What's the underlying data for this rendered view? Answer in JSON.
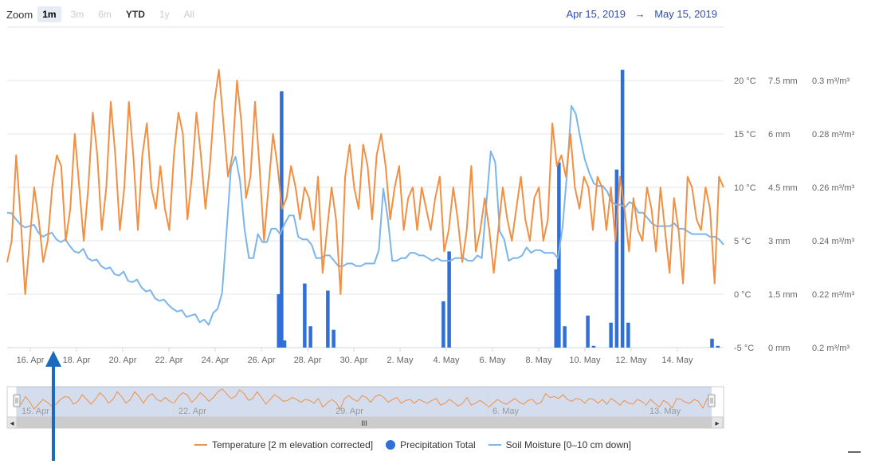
{
  "zoom": {
    "label": "Zoom",
    "buttons": [
      {
        "label": "1m",
        "state": "active"
      },
      {
        "label": "3m",
        "state": "disabled"
      },
      {
        "label": "6m",
        "state": "disabled"
      },
      {
        "label": "YTD",
        "state": "enabled"
      },
      {
        "label": "1y",
        "state": "disabled"
      },
      {
        "label": "All",
        "state": "disabled"
      }
    ]
  },
  "range": {
    "from": "Apr 15, 2019",
    "arrow": "→",
    "to": "May 15, 2019"
  },
  "colors": {
    "temperature": "#f28f43",
    "precipitation": "#2f6fd6",
    "soil": "#7cb5ec",
    "annotation_arrow": "#1a6bbd"
  },
  "chart_data": {
    "type": "line",
    "x_start": "2019-04-15",
    "x_end": "2019-05-16",
    "x_tick_labels": [
      "16. Apr",
      "18. Apr",
      "20. Apr",
      "22. Apr",
      "24. Apr",
      "26. Apr",
      "28. Apr",
      "30. Apr",
      "2. May",
      "4. May",
      "6. May",
      "8. May",
      "10. May",
      "12. May",
      "14. May"
    ],
    "navigator_tick_labels": [
      "15. Apr",
      "22. Apr",
      "29. Apr",
      "6. May",
      "13. May"
    ],
    "axes": [
      {
        "name": "temperature",
        "ticks": [
          "-5 °C",
          "0 °C",
          "5 °C",
          "10 °C",
          "15 °C",
          "20 °C"
        ],
        "ylim": [
          -5,
          20
        ]
      },
      {
        "name": "precipitation",
        "ticks": [
          "0 mm",
          "1.5 mm",
          "3 mm",
          "4.5 mm",
          "6 mm",
          "7.5 mm"
        ],
        "ylim": [
          0,
          7.5
        ]
      },
      {
        "name": "soil",
        "ticks": [
          "0.2 m³/m³",
          "0.22 m³/m³",
          "0.24 m³/m³",
          "0.26 m³/m³",
          "0.28 m³/m³",
          "0.3 m³/m³"
        ],
        "ylim": [
          0.2,
          0.3
        ]
      }
    ],
    "series": [
      {
        "name": "Temperature [2 m elevation corrected]",
        "kind": "line",
        "axis": 0,
        "values": [
          3,
          5,
          13,
          7,
          0,
          5,
          10,
          7,
          3,
          5,
          10,
          13,
          12,
          5,
          8,
          15,
          10,
          5,
          10,
          17,
          13,
          6,
          10,
          18,
          13,
          6,
          10,
          18,
          13,
          6,
          13,
          16,
          10,
          8,
          12,
          8,
          6,
          13,
          17,
          15,
          7,
          11,
          17,
          13,
          8,
          12,
          18,
          21,
          16,
          11,
          13,
          20,
          16,
          9,
          11,
          18,
          12,
          5,
          10,
          15,
          12,
          8,
          9,
          12,
          10,
          7,
          10,
          9,
          6,
          11,
          2,
          6,
          10,
          7,
          0,
          11,
          14,
          10,
          8,
          14,
          12,
          7,
          13,
          15,
          12,
          7,
          10,
          12,
          6,
          9,
          10,
          6,
          10,
          8,
          6,
          9,
          11,
          4,
          6,
          10,
          7,
          3,
          6,
          12,
          4,
          6,
          9,
          6,
          2,
          6,
          10,
          7,
          5,
          8,
          11,
          7,
          5,
          9,
          10,
          5,
          7,
          16,
          12,
          13,
          11,
          15,
          10,
          8,
          11,
          10,
          6,
          11,
          10,
          6,
          10,
          5,
          11,
          8,
          4,
          9,
          6,
          5,
          10,
          8,
          4,
          10,
          6,
          2,
          9,
          6,
          1,
          11,
          10,
          7,
          6,
          10,
          8,
          1,
          11,
          10
        ]
      },
      {
        "name": "Precipitation Total",
        "kind": "bar",
        "axis": 1,
        "points": [
          [
            "2019-04-26T18:00",
            1.5
          ],
          [
            "2019-04-26T21:00",
            7.2
          ],
          [
            "2019-04-27T00:00",
            0.2
          ],
          [
            "2019-04-27T21:00",
            1.8
          ],
          [
            "2019-04-28T03:00",
            0.6
          ],
          [
            "2019-04-28T21:00",
            1.6
          ],
          [
            "2019-04-29T03:00",
            0.5
          ],
          [
            "2019-05-03T21:00",
            1.3
          ],
          [
            "2019-05-04T03:00",
            2.7
          ],
          [
            "2019-05-08T18:00",
            2.2
          ],
          [
            "2019-05-08T21:00",
            5.2
          ],
          [
            "2019-05-09T03:00",
            0.6
          ],
          [
            "2019-05-10T03:00",
            0.9
          ],
          [
            "2019-05-10T09:00",
            0.05
          ],
          [
            "2019-05-11T03:00",
            0.7
          ],
          [
            "2019-05-11T09:00",
            5.0
          ],
          [
            "2019-05-11T15:00",
            7.8
          ],
          [
            "2019-05-11T21:00",
            0.7
          ],
          [
            "2019-05-15T12:00",
            0.25
          ],
          [
            "2019-05-15T18:00",
            0.05
          ]
        ]
      },
      {
        "name": "Soil Moisture [0-10 cm down]",
        "kind": "line",
        "axis": 2,
        "values": [
          0.2505,
          0.2503,
          0.248,
          0.246,
          0.245,
          0.2455,
          0.246,
          0.243,
          0.2415,
          0.2425,
          0.243,
          0.2405,
          0.2395,
          0.2405,
          0.238,
          0.236,
          0.2355,
          0.237,
          0.2335,
          0.2325,
          0.233,
          0.2305,
          0.2295,
          0.23,
          0.2275,
          0.227,
          0.2285,
          0.225,
          0.2245,
          0.2255,
          0.2225,
          0.221,
          0.2215,
          0.2185,
          0.2175,
          0.218,
          0.216,
          0.2145,
          0.2135,
          0.214,
          0.2115,
          0.212,
          0.2125,
          0.2095,
          0.2105,
          0.2085,
          0.213,
          0.2145,
          0.2205,
          0.2435,
          0.2675,
          0.2715,
          0.2625,
          0.2445,
          0.2335,
          0.2335,
          0.2425,
          0.2395,
          0.2395,
          0.2445,
          0.2445,
          0.2425,
          0.2465,
          0.2495,
          0.2495,
          0.2415,
          0.2405,
          0.2405,
          0.2385,
          0.2335,
          0.2335,
          0.2345,
          0.2345,
          0.2325,
          0.2305,
          0.2305,
          0.2315,
          0.2315,
          0.2305,
          0.2305,
          0.2315,
          0.2315,
          0.2315,
          0.2365,
          0.2595,
          0.2485,
          0.2325,
          0.2325,
          0.2335,
          0.2335,
          0.2355,
          0.2355,
          0.2345,
          0.2345,
          0.2335,
          0.2325,
          0.2335,
          0.2325,
          0.2325,
          0.2325,
          0.2335,
          0.2335,
          0.2335,
          0.2325,
          0.2325,
          0.2345,
          0.2335,
          0.2535,
          0.2735,
          0.2695,
          0.2435,
          0.2405,
          0.2325,
          0.2335,
          0.2335,
          0.2345,
          0.2375,
          0.2355,
          0.2365,
          0.2365,
          0.2355,
          0.2355,
          0.2355,
          0.2335,
          0.2445,
          0.2645,
          0.2905,
          0.2875,
          0.2785,
          0.2705,
          0.2655,
          0.2615,
          0.2605,
          0.2605,
          0.2585,
          0.2545,
          0.2535,
          0.2535,
          0.2525,
          0.2545,
          0.2535,
          0.2505,
          0.2505,
          0.2485,
          0.2465,
          0.2455,
          0.2455,
          0.2455,
          0.2455,
          0.2465,
          0.2445,
          0.2445,
          0.2435,
          0.2425,
          0.2425,
          0.2425,
          0.2425,
          0.2415,
          0.2415,
          0.2405,
          0.2385
        ]
      }
    ]
  },
  "legend": [
    {
      "label": "Temperature [2 m elevation corrected]",
      "symbol": "line",
      "color": "#f28f43"
    },
    {
      "label": "Precipitation Total",
      "symbol": "dot",
      "color": "#2f6fd6"
    },
    {
      "label": "Soil Moisture [0–10 cm down]",
      "symbol": "line",
      "color": "#7cb5ec"
    }
  ],
  "scrollbar": {
    "grip_glyph": "III",
    "left_arrow": "◂",
    "right_arrow": "▸"
  }
}
